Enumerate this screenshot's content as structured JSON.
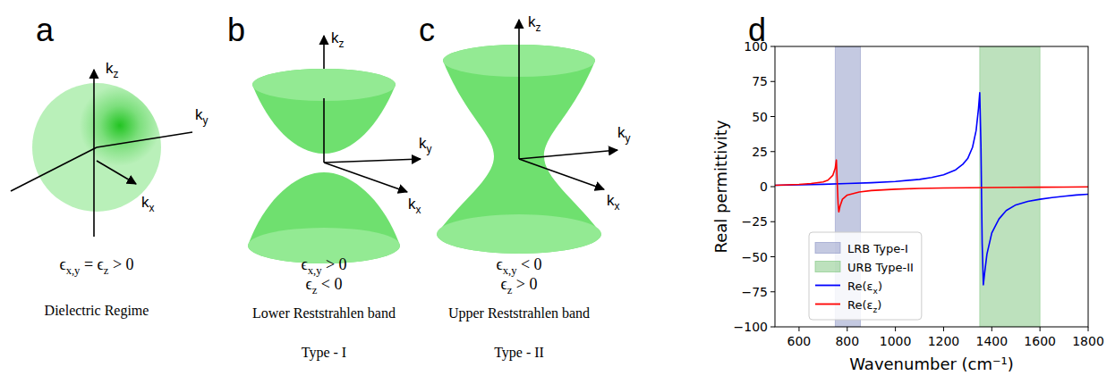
{
  "chart_data": {
    "type": "line",
    "panel_label": "d",
    "x_label": "Wavenumber (cm⁻¹)",
    "y_label": "Real permittivity",
    "xlim": [
      500,
      1800
    ],
    "xticks": [
      600,
      800,
      1000,
      1200,
      1400,
      1600,
      1800
    ],
    "ylim": [
      -100,
      100
    ],
    "yticks": [
      {
        "value": -100,
        "label": "−100"
      },
      {
        "value": -75,
        "label": "−75"
      },
      {
        "value": -50,
        "label": "−50"
      },
      {
        "value": -25,
        "label": "−25"
      },
      0,
      25,
      50,
      75,
      100
    ],
    "grid": false,
    "legend": "lower left",
    "bands": [
      {
        "name": "LRB Type-I",
        "start": 750,
        "end": 855,
        "color": "#8a93c4"
      },
      {
        "name": "URB Type-II",
        "start": 1350,
        "end": 1600,
        "color": "#7cc47c"
      }
    ],
    "series": [
      {
        "name": "Re(εx)",
        "color": "#0000ff",
        "x": [
          500,
          600,
          700,
          800,
          900,
          1000,
          1100,
          1150,
          1200,
          1250,
          1280,
          1300,
          1320,
          1335,
          1345,
          1350,
          1355,
          1360,
          1365,
          1370,
          1380,
          1400,
          1430,
          1460,
          1500,
          1550,
          1600,
          1650,
          1700,
          1750,
          1800
        ],
        "values": [
          1.0,
          1.3,
          1.7,
          2.2,
          2.8,
          3.7,
          5.2,
          6.5,
          8.5,
          12,
          16,
          20,
          28,
          40,
          56,
          67,
          30,
          -40,
          -70,
          -62,
          -48,
          -33,
          -23,
          -17,
          -13,
          -10.5,
          -9,
          -7.8,
          -6.8,
          -6,
          -5.4
        ]
      },
      {
        "name": "Re(εz)",
        "color": "#ff0000",
        "x": [
          500,
          600,
          650,
          700,
          720,
          740,
          750,
          755,
          758,
          762,
          765,
          770,
          780,
          800,
          850,
          900,
          1000,
          1100,
          1200,
          1300,
          1400,
          1500,
          1600,
          1700,
          1800
        ],
        "values": [
          1.0,
          1.6,
          2.2,
          3.3,
          4.6,
          8,
          13,
          19,
          5,
          -12,
          -18,
          -14,
          -9,
          -6,
          -3.8,
          -2.8,
          -1.8,
          -1.3,
          -1,
          -0.8,
          -0.6,
          -0.5,
          -0.4,
          -0.3,
          -0.2
        ]
      }
    ]
  },
  "panels": [
    {
      "letter": "a",
      "axes": [
        [
          {
            "t": "k"
          },
          {
            "s": "z"
          }
        ],
        [
          {
            "t": "k"
          },
          {
            "s": "y"
          }
        ],
        [
          {
            "t": "k"
          },
          {
            "s": "x"
          }
        ]
      ],
      "equations": [
        [
          {
            "t": "ϵ"
          },
          {
            "s": "x,y"
          },
          {
            "t": " = ϵ"
          },
          {
            "s": "z"
          },
          {
            "t": " > 0"
          }
        ]
      ],
      "caption": [
        "Dielectric Regime"
      ]
    },
    {
      "letter": "b",
      "axes": [
        [
          {
            "t": "k"
          },
          {
            "s": "z"
          }
        ],
        [
          {
            "t": "k"
          },
          {
            "s": "y"
          }
        ],
        [
          {
            "t": "k"
          },
          {
            "s": "x"
          }
        ]
      ],
      "equations": [
        [
          {
            "t": "ϵ"
          },
          {
            "s": "x,y"
          },
          {
            "t": " > 0"
          }
        ],
        [
          {
            "t": "ϵ"
          },
          {
            "s": "z"
          },
          {
            "t": " < 0"
          }
        ]
      ],
      "caption": [
        "Lower Reststrahlen band",
        "Type - I"
      ]
    },
    {
      "letter": "c",
      "axes": [
        [
          {
            "t": "k"
          },
          {
            "s": "z"
          }
        ],
        [
          {
            "t": "k"
          },
          {
            "s": "y"
          }
        ],
        [
          {
            "t": "k"
          },
          {
            "s": "x"
          }
        ]
      ],
      "equations": [
        [
          {
            "t": "ϵ"
          },
          {
            "s": "x,y"
          },
          {
            "t": " < 0"
          }
        ],
        [
          {
            "t": "ϵ"
          },
          {
            "s": "z"
          },
          {
            "t": " > 0"
          }
        ]
      ],
      "caption": [
        "Upper Reststrahlen band",
        "Type - II"
      ]
    }
  ]
}
